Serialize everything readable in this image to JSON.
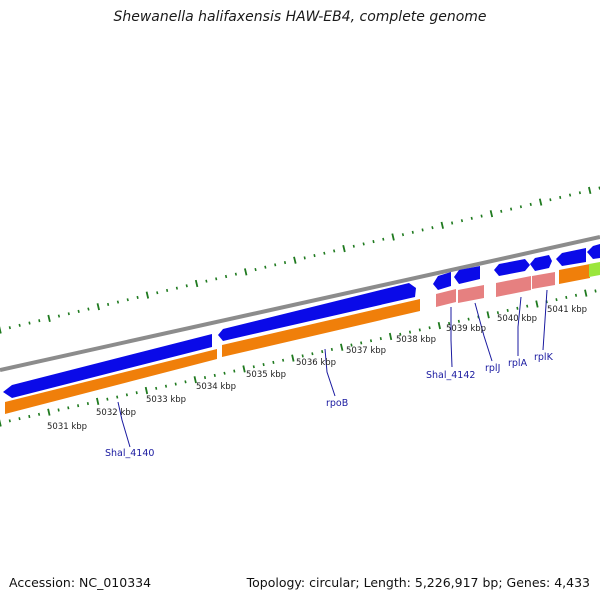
{
  "title": "Shewanella halifaxensis HAW-EB4, complete genome",
  "accession": "Accession: NC_010334",
  "topology": "Topology: circular; Length: 5,226,917 bp; Genes: 4,433",
  "colors": {
    "forward_cds": "#0a0ae8",
    "reverse_cds": "#0a0ae8",
    "gene_orange": "#f07f0a",
    "gene_pink": "#e68080",
    "gene_green": "#9be63c",
    "backbone": "#8c8c8c",
    "ticks": "#1f7a1f",
    "label": "#1a1aa0"
  },
  "kbp_ticks": [
    "5031 kbp",
    "5032 kbp",
    "5033 kbp",
    "5034 kbp",
    "5035 kbp",
    "5036 kbp",
    "5037 kbp",
    "5038 kbp",
    "5039 kbp",
    "5040 kbp",
    "5041 kbp"
  ],
  "gene_labels": [
    "Shal_4140",
    "rpoB",
    "Shal_4142",
    "rplJ",
    "rplA",
    "rplK"
  ]
}
